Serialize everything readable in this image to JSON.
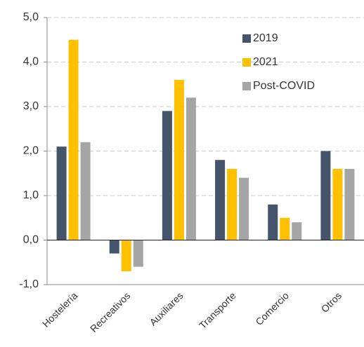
{
  "chart_data": {
    "type": "bar",
    "categories": [
      "Hostelería",
      "Recreativos",
      "Auxiliares",
      "Transporte",
      "Comercio",
      "Otros"
    ],
    "series": [
      {
        "name": "2019",
        "color": "#44546a",
        "values": [
          2.1,
          -0.3,
          2.9,
          1.8,
          0.8,
          2.0
        ]
      },
      {
        "name": "2021",
        "color": "#ffc000",
        "values": [
          4.5,
          -0.7,
          3.6,
          1.6,
          0.5,
          1.6
        ]
      },
      {
        "name": "Post-COVID",
        "color": "#a5a5a5",
        "values": [
          2.2,
          -0.6,
          3.2,
          1.4,
          0.4,
          1.6
        ]
      }
    ],
    "ylim": [
      -1,
      5
    ],
    "yticks": [
      {
        "value": -1,
        "label": "-1,0"
      },
      {
        "value": 0,
        "label": "0,0"
      },
      {
        "value": 1,
        "label": "1,0"
      },
      {
        "value": 2,
        "label": "2,0"
      },
      {
        "value": 3,
        "label": "3,0"
      },
      {
        "value": 4,
        "label": "4,0"
      },
      {
        "value": 5,
        "label": "5,0"
      }
    ],
    "grid": true,
    "legend": "top-right"
  }
}
